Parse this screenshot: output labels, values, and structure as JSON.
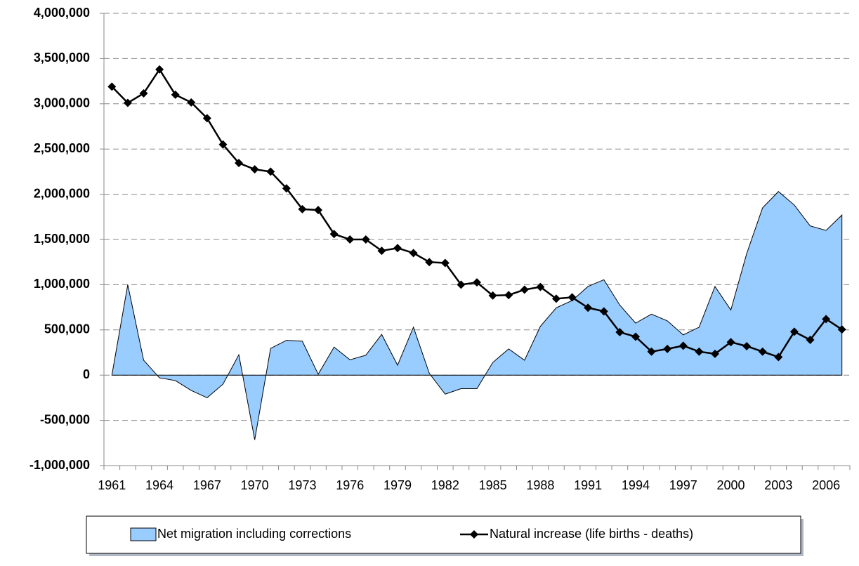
{
  "chart_data": {
    "type": "area-line",
    "categories": [
      "1961",
      null,
      null,
      "1964",
      null,
      null,
      "1967",
      null,
      null,
      "1970",
      null,
      null,
      "1973",
      null,
      null,
      "1976",
      null,
      null,
      "1979",
      null,
      null,
      "1982",
      null,
      null,
      "1985",
      null,
      null,
      "1988",
      null,
      null,
      "1991",
      null,
      null,
      "1994",
      null,
      null,
      "1997",
      null,
      null,
      "2000",
      null,
      null,
      "2003",
      null,
      null,
      "2006",
      null
    ],
    "series": [
      {
        "name": "Net migration including corrections",
        "type": "area",
        "color": "#99ccff",
        "values": [
          0,
          1000000,
          165000,
          -30000,
          -60000,
          -170000,
          -250000,
          -100000,
          225000,
          -715000,
          295000,
          385000,
          375000,
          10000,
          310000,
          170000,
          220000,
          450000,
          110000,
          530000,
          20000,
          -210000,
          -150000,
          -150000,
          140000,
          290000,
          165000,
          540000,
          745000,
          825000,
          980000,
          1055000,
          775000,
          575000,
          675000,
          600000,
          445000,
          530000,
          980000,
          720000,
          1345000,
          1850000,
          2030000,
          1880000,
          1650000,
          1600000,
          1770000
        ]
      },
      {
        "name": "Natural increase (life births - deaths)",
        "type": "line",
        "color": "#000000",
        "values": [
          3190000,
          3010000,
          3115000,
          3380000,
          3100000,
          3015000,
          2840000,
          2550000,
          2345000,
          2275000,
          2250000,
          2065000,
          1835000,
          1825000,
          1560000,
          1500000,
          1500000,
          1375000,
          1405000,
          1350000,
          1250000,
          1240000,
          1000000,
          1025000,
          880000,
          885000,
          945000,
          975000,
          845000,
          860000,
          745000,
          705000,
          475000,
          425000,
          260000,
          290000,
          325000,
          260000,
          235000,
          365000,
          320000,
          260000,
          200000,
          480000,
          390000,
          620000,
          505000
        ]
      }
    ],
    "ylim": [
      -1000000,
      4000000
    ],
    "yticks": [
      {
        "value": -1000000,
        "label": "-1,000,000"
      },
      {
        "value": -500000,
        "label": "-500,000"
      },
      0,
      {
        "value": 500000,
        "label": "500,000"
      },
      {
        "value": 1000000,
        "label": "1,000,000"
      },
      {
        "value": 1500000,
        "label": "1,500,000"
      },
      {
        "value": 2000000,
        "label": "2,000,000"
      },
      {
        "value": 2500000,
        "label": "2,500,000"
      },
      {
        "value": 3000000,
        "label": "3,000,000"
      },
      {
        "value": 3500000,
        "label": "3,500,000"
      },
      {
        "value": 4000000,
        "label": "4,000,000"
      }
    ],
    "grid": true,
    "legend": "bottom"
  }
}
